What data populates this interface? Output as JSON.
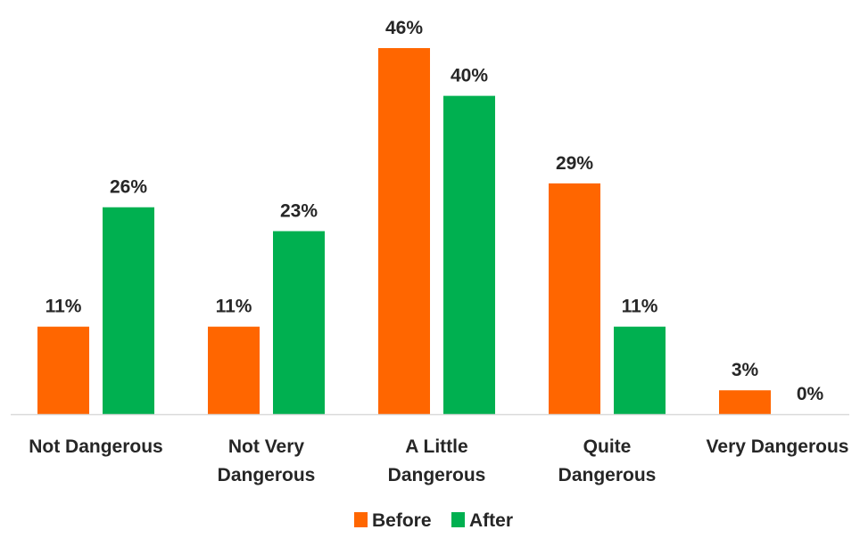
{
  "chart_data": {
    "type": "bar",
    "categories": [
      [
        "Not Dangerous"
      ],
      [
        "Not Very",
        "Dangerous"
      ],
      [
        "A Little",
        "Dangerous"
      ],
      [
        "Quite",
        "Dangerous"
      ],
      [
        "Very Dangerous"
      ]
    ],
    "series": [
      {
        "name": "Before",
        "color": "#FF6600",
        "values": [
          11,
          11,
          46,
          29,
          3
        ],
        "labels": [
          "11%",
          "11%",
          "46%",
          "29%",
          "3%"
        ]
      },
      {
        "name": "After",
        "color": "#00B050",
        "values": [
          26,
          23,
          40,
          11,
          0
        ],
        "labels": [
          "26%",
          "23%",
          "40%",
          "11%",
          "0%"
        ]
      }
    ],
    "title": "",
    "xlabel": "",
    "ylabel": "",
    "ylim": [
      0,
      46
    ],
    "grid": false,
    "legend": "bottom",
    "baseline_color": "#D9D9D9"
  }
}
